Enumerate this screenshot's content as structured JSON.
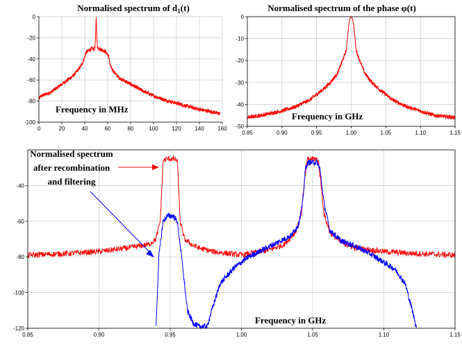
{
  "chart_data": [
    {
      "id": "d1",
      "type": "line",
      "title_main": "Normalised spectrum of d",
      "title_sub": "1",
      "title_tail": "(t)",
      "xlabel": "Frequency in MHz",
      "ylabel": "",
      "xlim": [
        0,
        160
      ],
      "ylim": [
        -100,
        0
      ],
      "xticks": [
        "0",
        "20",
        "40",
        "60",
        "80",
        "100",
        "120",
        "140",
        "160"
      ],
      "yticks": [
        "0",
        "-20",
        "-40",
        "-60",
        "-80",
        "-100"
      ],
      "grid": true,
      "series": [
        {
          "color": "#ff0000",
          "x": [
            0,
            2,
            5,
            10,
            15,
            20,
            25,
            30,
            33,
            36,
            38,
            40,
            41,
            42,
            44,
            46,
            48,
            49,
            49.6,
            50,
            50.4,
            51,
            52,
            54,
            56,
            58,
            60,
            61,
            62,
            64,
            66,
            70,
            75,
            80,
            90,
            100,
            110,
            120,
            130,
            140,
            150,
            158
          ],
          "y": [
            -78,
            -75,
            -74,
            -72,
            -68,
            -64,
            -60,
            -56,
            -52,
            -48,
            -44,
            -38,
            -34,
            -33,
            -32,
            -30,
            -31,
            -28,
            -15,
            0,
            -15,
            -29,
            -30,
            -31,
            -32,
            -33,
            -36,
            -38,
            -46,
            -50,
            -53,
            -58,
            -61,
            -64,
            -70,
            -75,
            -79,
            -82,
            -85,
            -88,
            -90,
            -92
          ]
        }
      ]
    },
    {
      "id": "phi",
      "type": "line",
      "title": "Normalised spectrum of the phase φ(t)",
      "xlabel": "Frequency in GHz",
      "ylabel": "",
      "xlim": [
        0.85,
        1.15
      ],
      "ylim": [
        -50,
        0
      ],
      "xticks": [
        "0.85",
        "0.90",
        "0.95",
        "1.00",
        "1.05",
        "1.10",
        "1.15"
      ],
      "yticks": [
        "0",
        "-10",
        "-20",
        "-30",
        "-40",
        "-50"
      ],
      "grid": true,
      "series": [
        {
          "color": "#ff0000",
          "x": [
            0.85,
            0.87,
            0.9,
            0.92,
            0.94,
            0.96,
            0.97,
            0.98,
            0.985,
            0.99,
            0.993,
            0.996,
            0.998,
            1.0,
            1.002,
            1.004,
            1.007,
            1.01,
            1.015,
            1.02,
            1.03,
            1.04,
            1.06,
            1.08,
            1.1,
            1.12,
            1.15
          ],
          "y": [
            -46,
            -45,
            -43,
            -41,
            -38,
            -33,
            -30,
            -26,
            -22,
            -18,
            -15,
            -5,
            -1,
            0,
            -1,
            -5,
            -15,
            -18,
            -22,
            -26,
            -30,
            -33,
            -38,
            -41,
            -43,
            -45,
            -46
          ]
        }
      ]
    },
    {
      "id": "recomb",
      "type": "line",
      "xlabel": "Frequency in GHz",
      "ylabel": "",
      "xlim": [
        0.85,
        1.15
      ],
      "ylim": [
        -120,
        -20
      ],
      "xticks": [
        "0.85",
        "0.90",
        "0.95",
        "1.00",
        "1.05",
        "1.10",
        "1.15"
      ],
      "yticks": [
        "-40",
        "-60",
        "-80",
        "-100",
        "-120"
      ],
      "grid": true,
      "annotation_lines": [
        "Normalised spectrum",
        "after recombination",
        "and filtering"
      ],
      "series": [
        {
          "color": "#ff0000",
          "x": [
            0.85,
            0.88,
            0.9,
            0.92,
            0.935,
            0.94,
            0.943,
            0.945,
            0.948,
            0.952,
            0.955,
            0.957,
            0.96,
            0.965,
            0.97,
            0.98,
            1.0,
            1.02,
            1.03,
            1.038,
            1.042,
            1.044,
            1.046,
            1.048,
            1.052,
            1.054,
            1.056,
            1.058,
            1.062,
            1.07,
            1.08,
            1.1,
            1.12,
            1.15
          ],
          "y": [
            -79,
            -78,
            -77,
            -75,
            -73,
            -70,
            -60,
            -26,
            -25,
            -25,
            -26,
            -60,
            -70,
            -73,
            -75,
            -77,
            -79,
            -76,
            -73,
            -66,
            -56,
            -40,
            -26,
            -25,
            -25,
            -26,
            -40,
            -56,
            -66,
            -72,
            -75,
            -77,
            -78,
            -79
          ]
        },
        {
          "color": "#0000ff",
          "x": [
            0.94,
            0.942,
            0.945,
            0.948,
            0.952,
            0.955,
            0.958,
            0.962,
            0.966,
            0.97,
            0.976,
            0.978,
            0.985,
            0.995,
            1.005,
            1.015,
            1.025,
            1.035,
            1.04,
            1.043,
            1.045,
            1.047,
            1.05,
            1.053,
            1.055,
            1.058,
            1.062,
            1.07,
            1.08,
            1.09,
            1.1,
            1.108,
            1.115,
            1.12,
            1.123
          ],
          "y": [
            -120,
            -80,
            -60,
            -57,
            -57,
            -60,
            -80,
            -110,
            -117,
            -119,
            -119,
            -113,
            -95,
            -86,
            -80,
            -76,
            -72,
            -68,
            -62,
            -50,
            -30,
            -27,
            -27,
            -27,
            -30,
            -50,
            -65,
            -71,
            -74,
            -78,
            -83,
            -87,
            -95,
            -110,
            -120
          ]
        }
      ]
    }
  ]
}
